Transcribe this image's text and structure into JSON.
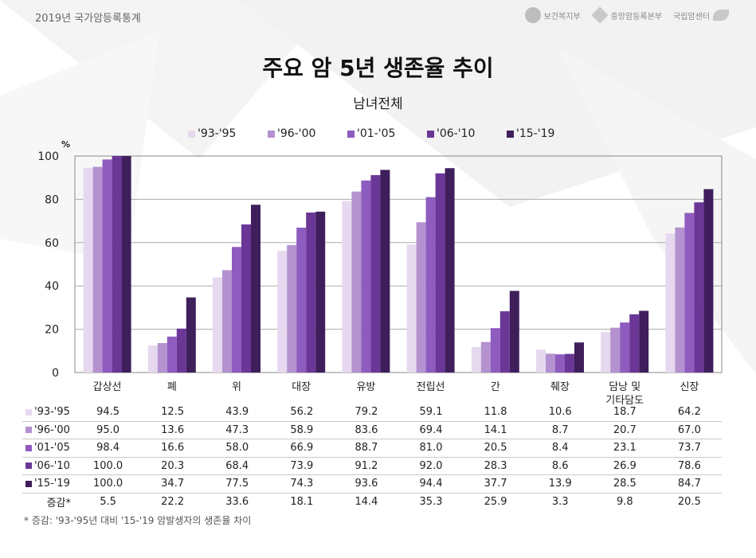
{
  "header": {
    "brand": "2019년 국가암등록통계",
    "logos": [
      {
        "name": "보건복지부",
        "icon": "mohw-logo"
      },
      {
        "name": "중앙암등록본부",
        "icon": "kccr-logo"
      },
      {
        "name": "국립암센터",
        "icon": "ncc-logo"
      }
    ]
  },
  "title": "주요 암 5년 생존율 추이",
  "subtitle": "남녀전체",
  "footnote": "* 증감: '93-'95년 대비 '15-'19 암발생자의 생존율 차이",
  "table_total_label": "증감*",
  "chart_data": {
    "type": "bar",
    "ylabel": "%",
    "ylim": [
      0,
      100
    ],
    "yticks": [
      0,
      20,
      40,
      60,
      80,
      100
    ],
    "grid": true,
    "legend_position": "top",
    "categories": [
      "갑상선",
      "폐",
      "위",
      "대장",
      "유방",
      "전립선",
      "간",
      "췌장",
      "담낭 및\n기타담도",
      "신장"
    ],
    "series": [
      {
        "name": "'93-'95",
        "color": "#e6d9ef",
        "values": [
          94.5,
          12.5,
          43.9,
          56.2,
          79.2,
          59.1,
          11.8,
          10.6,
          18.7,
          64.2
        ]
      },
      {
        "name": "'96-'00",
        "color": "#b492cf",
        "values": [
          95.0,
          13.6,
          47.3,
          58.9,
          83.6,
          69.4,
          14.1,
          8.7,
          20.7,
          67.0
        ]
      },
      {
        "name": "'01-'05",
        "color": "#8e5bbf",
        "values": [
          98.4,
          16.6,
          58.0,
          66.9,
          88.7,
          81.0,
          20.5,
          8.4,
          23.1,
          73.7
        ]
      },
      {
        "name": "'06-'10",
        "color": "#6a3796",
        "values": [
          100.0,
          20.3,
          68.4,
          73.9,
          91.2,
          92.0,
          28.3,
          8.6,
          26.9,
          78.6
        ]
      },
      {
        "name": "'15-'19",
        "color": "#3f1e5c",
        "values": [
          100.0,
          34.7,
          77.5,
          74.3,
          93.6,
          94.4,
          37.7,
          13.9,
          28.5,
          84.7
        ]
      }
    ],
    "change": [
      "5.5",
      "22.2",
      "33.6",
      "18.1",
      "14.4",
      "35.3",
      "25.9",
      "3.3",
      "9.8",
      "20.5"
    ]
  }
}
